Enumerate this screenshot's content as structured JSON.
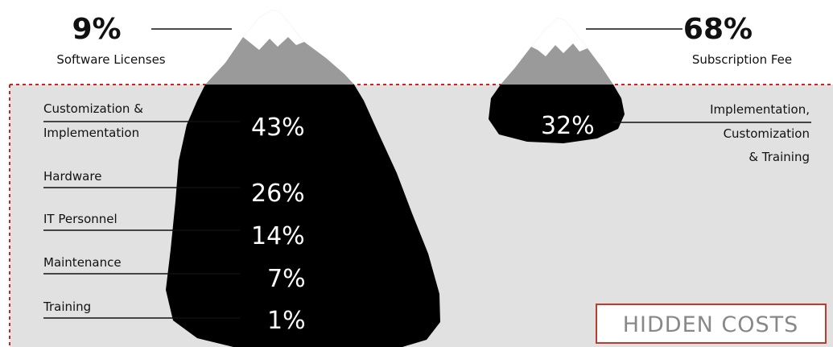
{
  "colors": {
    "water": "#e1e1e1",
    "water_border": "#cc2222",
    "ice_underwater": "#000000",
    "mountain_grey": "#9a9a9a",
    "mountain_snow": "#ffffff",
    "leader_line": "#111111",
    "hidden_costs_text": "#888888",
    "hidden_costs_border": "#c0392b"
  },
  "left_iceberg": {
    "tip": {
      "percent": "9%",
      "caption": "Software Licenses"
    },
    "hidden": [
      {
        "label_lines": [
          "Customization &",
          "Implementation"
        ],
        "percent": "43%"
      },
      {
        "label_lines": [
          "Hardware"
        ],
        "percent": "26%"
      },
      {
        "label_lines": [
          "IT Personnel"
        ],
        "percent": "14%"
      },
      {
        "label_lines": [
          "Maintenance"
        ],
        "percent": "7%"
      },
      {
        "label_lines": [
          "Training"
        ],
        "percent": "1%"
      }
    ]
  },
  "right_iceberg": {
    "tip": {
      "percent": "68%",
      "caption": "Subscription Fee"
    },
    "hidden": {
      "percent": "32%",
      "label_lines": [
        "Implementation,",
        "Customization",
        "& Training"
      ]
    }
  },
  "hidden_costs_label": "HIDDEN COSTS"
}
